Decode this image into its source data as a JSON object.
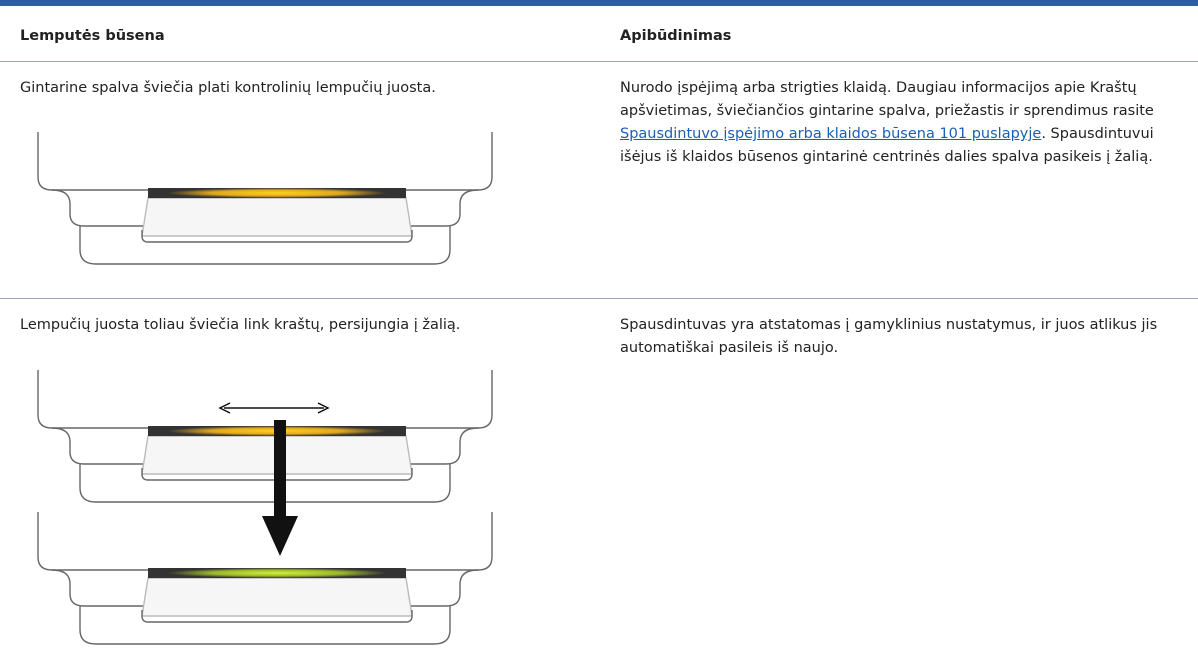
{
  "table": {
    "headers": [
      "Lemputės būsena",
      "Apibūdinimas"
    ],
    "rows": [
      [
        "Gintarine spalva šviečia plati kontrolinių lempučių juosta.",
        {
          "before": "Nurodo įspėjimą arba strigties klaidą. Daugiau informacijos apie Kraštų apšvietimas, šviečiančios gintarine spalva, priežastis ir sprendimus rasite ",
          "link": "Spausdintuvo įspėjimo arba klaidos būsena 101 puslapyje",
          "after": ". Spausdintuvui išėjus iš klaidos būsenos gintarinė centrinės dalies spalva pasikeis į žalią."
        }
      ],
      [
        "Lempučių juosta toliau šviečia link kraštų, persijungia į žalią.",
        "Spausdintuvas yra atstatomas į gamyklinius nustatymus, ir juos atlikus jis automatiškai pasileis iš naujo."
      ]
    ]
  }
}
